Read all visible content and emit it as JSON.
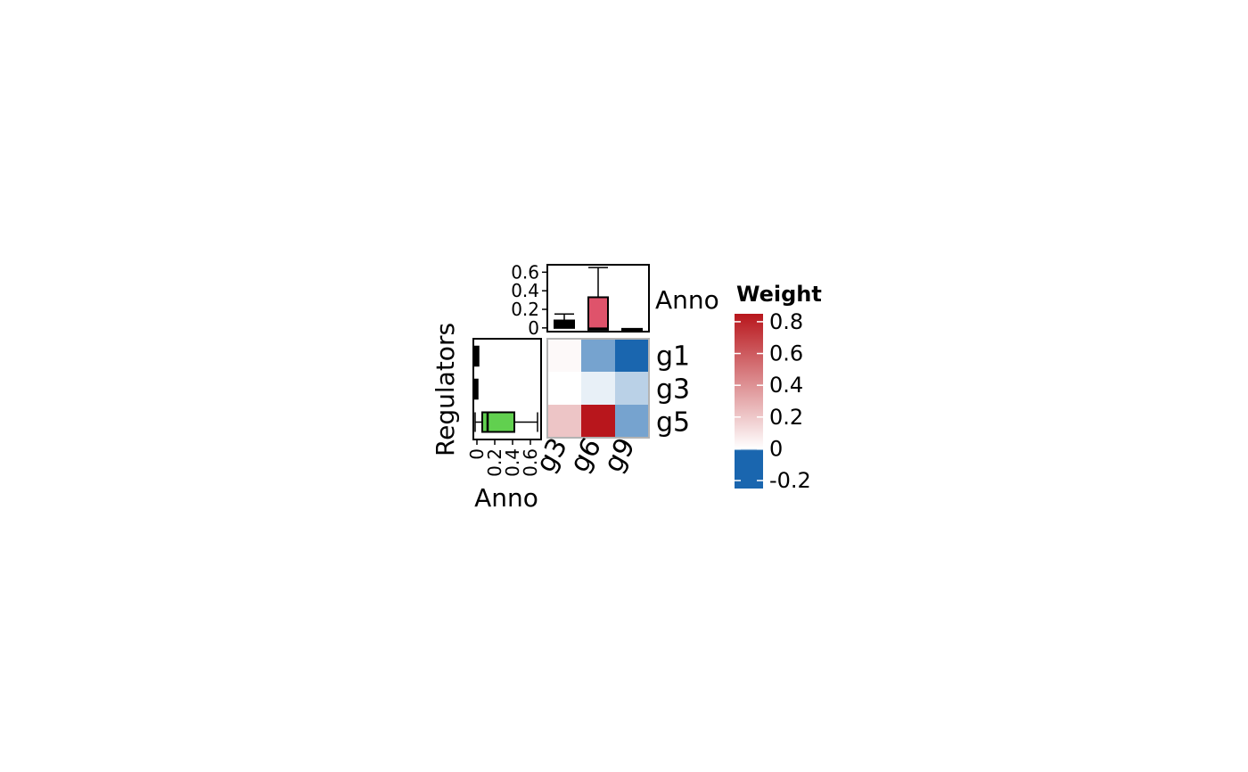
{
  "chart_data": {
    "type": "heatmap",
    "heatmap": {
      "rows": [
        "g1",
        "g3",
        "g5"
      ],
      "columns": [
        "g3",
        "g6",
        "g9"
      ],
      "values": [
        [
          0.02,
          -0.12,
          -0.22
        ],
        [
          0.0,
          -0.02,
          -0.06
        ],
        [
          0.2,
          0.82,
          -0.12
        ]
      ],
      "y_title": "Regulators"
    },
    "top_boxplot": {
      "axis_title": "Anno",
      "ylim": [
        -0.04,
        0.68
      ],
      "ticks": [
        "0",
        "0.2",
        "0.4",
        "0.6"
      ],
      "tick_values": [
        0,
        0.2,
        0.4,
        0.6
      ],
      "boxes": [
        {
          "category": "g3",
          "min": 0.0,
          "q1": 0.0,
          "median": 0.02,
          "q3": 0.08,
          "max": 0.15,
          "fill": "#000000"
        },
        {
          "category": "g6",
          "min": -0.02,
          "q1": -0.02,
          "median": -0.01,
          "q3": 0.33,
          "max": 0.65,
          "fill": "#DF536B"
        },
        {
          "category": "g9",
          "min": -0.03,
          "q1": -0.03,
          "median": -0.02,
          "q3": -0.01,
          "max": -0.01,
          "fill": "#000000"
        }
      ]
    },
    "left_boxplot": {
      "axis_title": "Anno",
      "xlim": [
        -0.04,
        0.72
      ],
      "ticks": [
        "0",
        "0.2",
        "0.4",
        "0.6"
      ],
      "tick_values": [
        0,
        0.2,
        0.4,
        0.6
      ],
      "boxes": [
        {
          "category": "g1",
          "min": -0.02,
          "q1": -0.02,
          "median": -0.01,
          "q3": 0.0,
          "max": 0.0,
          "fill": "#000000"
        },
        {
          "category": "g3",
          "min": -0.01,
          "q1": -0.01,
          "median": -0.01,
          "q3": -0.01,
          "max": -0.01,
          "fill": "#000000"
        },
        {
          "category": "g5",
          "min": -0.02,
          "q1": 0.06,
          "median": 0.12,
          "q3": 0.42,
          "max": 0.68,
          "fill": "#61D04F"
        }
      ]
    },
    "legend": {
      "title": "Weight",
      "min": -0.25,
      "max": 0.85,
      "ticks": [
        "0.8",
        "0.6",
        "0.4",
        "0.2",
        "0",
        "-0.2"
      ],
      "tick_values": [
        0.8,
        0.6,
        0.4,
        0.2,
        0,
        -0.2
      ],
      "color_low": "#1A66AF",
      "color_mid": "#FFFFFF",
      "color_high": "#B8161C"
    }
  }
}
